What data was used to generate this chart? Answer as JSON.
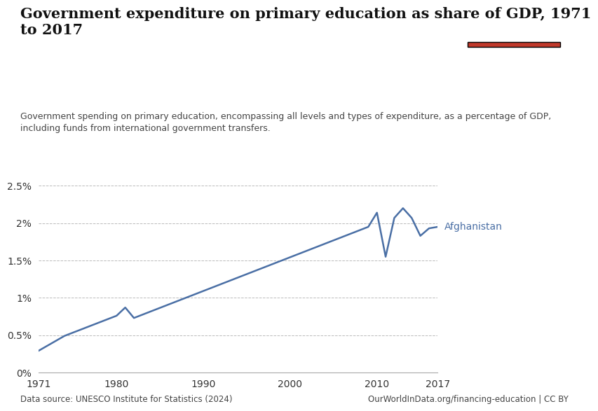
{
  "title": "Government expenditure on primary education as share of GDP, 1971\nto 2017",
  "subtitle": "Government spending on primary education, encompassing all levels and types of expenditure, as a percentage of GDP,\nincluding funds from international government transfers.",
  "datasource": "Data source: UNESCO Institute for Statistics (2024)",
  "url": "OurWorldInData.org/financing-education | CC BY",
  "label": "Afghanistan",
  "line_color": "#4a6fa5",
  "years": [
    1971,
    1974,
    1980,
    1981,
    1982,
    2009,
    2010,
    2011,
    2012,
    2013,
    2014,
    2015,
    2016,
    2017
  ],
  "values": [
    0.29,
    0.49,
    0.76,
    0.87,
    0.73,
    1.95,
    2.14,
    1.55,
    2.07,
    2.2,
    2.07,
    1.83,
    1.93,
    1.95
  ],
  "xlim": [
    1971,
    2017
  ],
  "ylim": [
    0,
    2.7
  ],
  "yticks": [
    0,
    0.5,
    1.0,
    1.5,
    2.0,
    2.5
  ],
  "ytick_labels": [
    "0%",
    "0.5%",
    "1%",
    "1.5%",
    "2%",
    "2.5%"
  ],
  "xticks": [
    1971,
    1980,
    1990,
    2000,
    2010,
    2017
  ],
  "bg_color": "#ffffff",
  "owid_box_color": "#1a3a5c",
  "owid_box_red": "#c0392b"
}
